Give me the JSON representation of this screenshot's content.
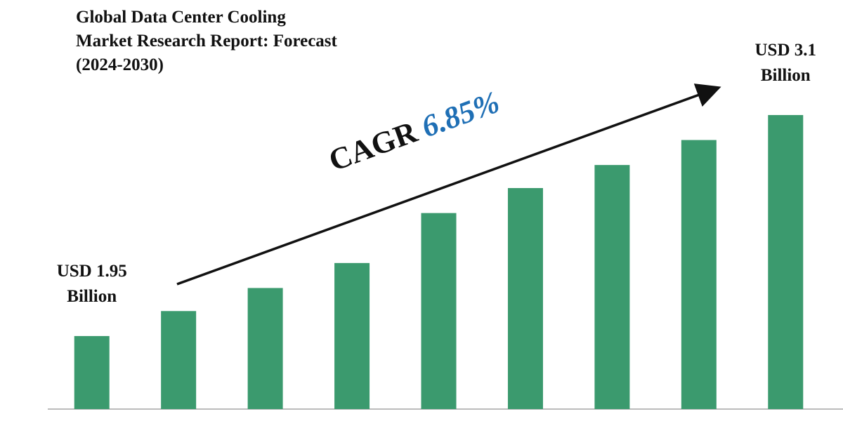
{
  "chart_data": {
    "type": "bar",
    "title": "Global Data Center Cooling Market Research Report: Forecast (2024-2030)",
    "values": [
      1.95,
      2.08,
      2.2,
      2.33,
      2.59,
      2.72,
      2.84,
      2.97,
      3.1
    ],
    "value_labels": [
      "USD 1.95 Billion",
      null,
      null,
      null,
      null,
      null,
      null,
      null,
      "USD 3.1 Billion"
    ],
    "color": "#3b9a6e",
    "ylim": [
      1.57,
      3.6
    ],
    "annotation": {
      "text": "CAGR",
      "rate": "6.85%",
      "rate_color": "#1f6fb5"
    }
  }
}
